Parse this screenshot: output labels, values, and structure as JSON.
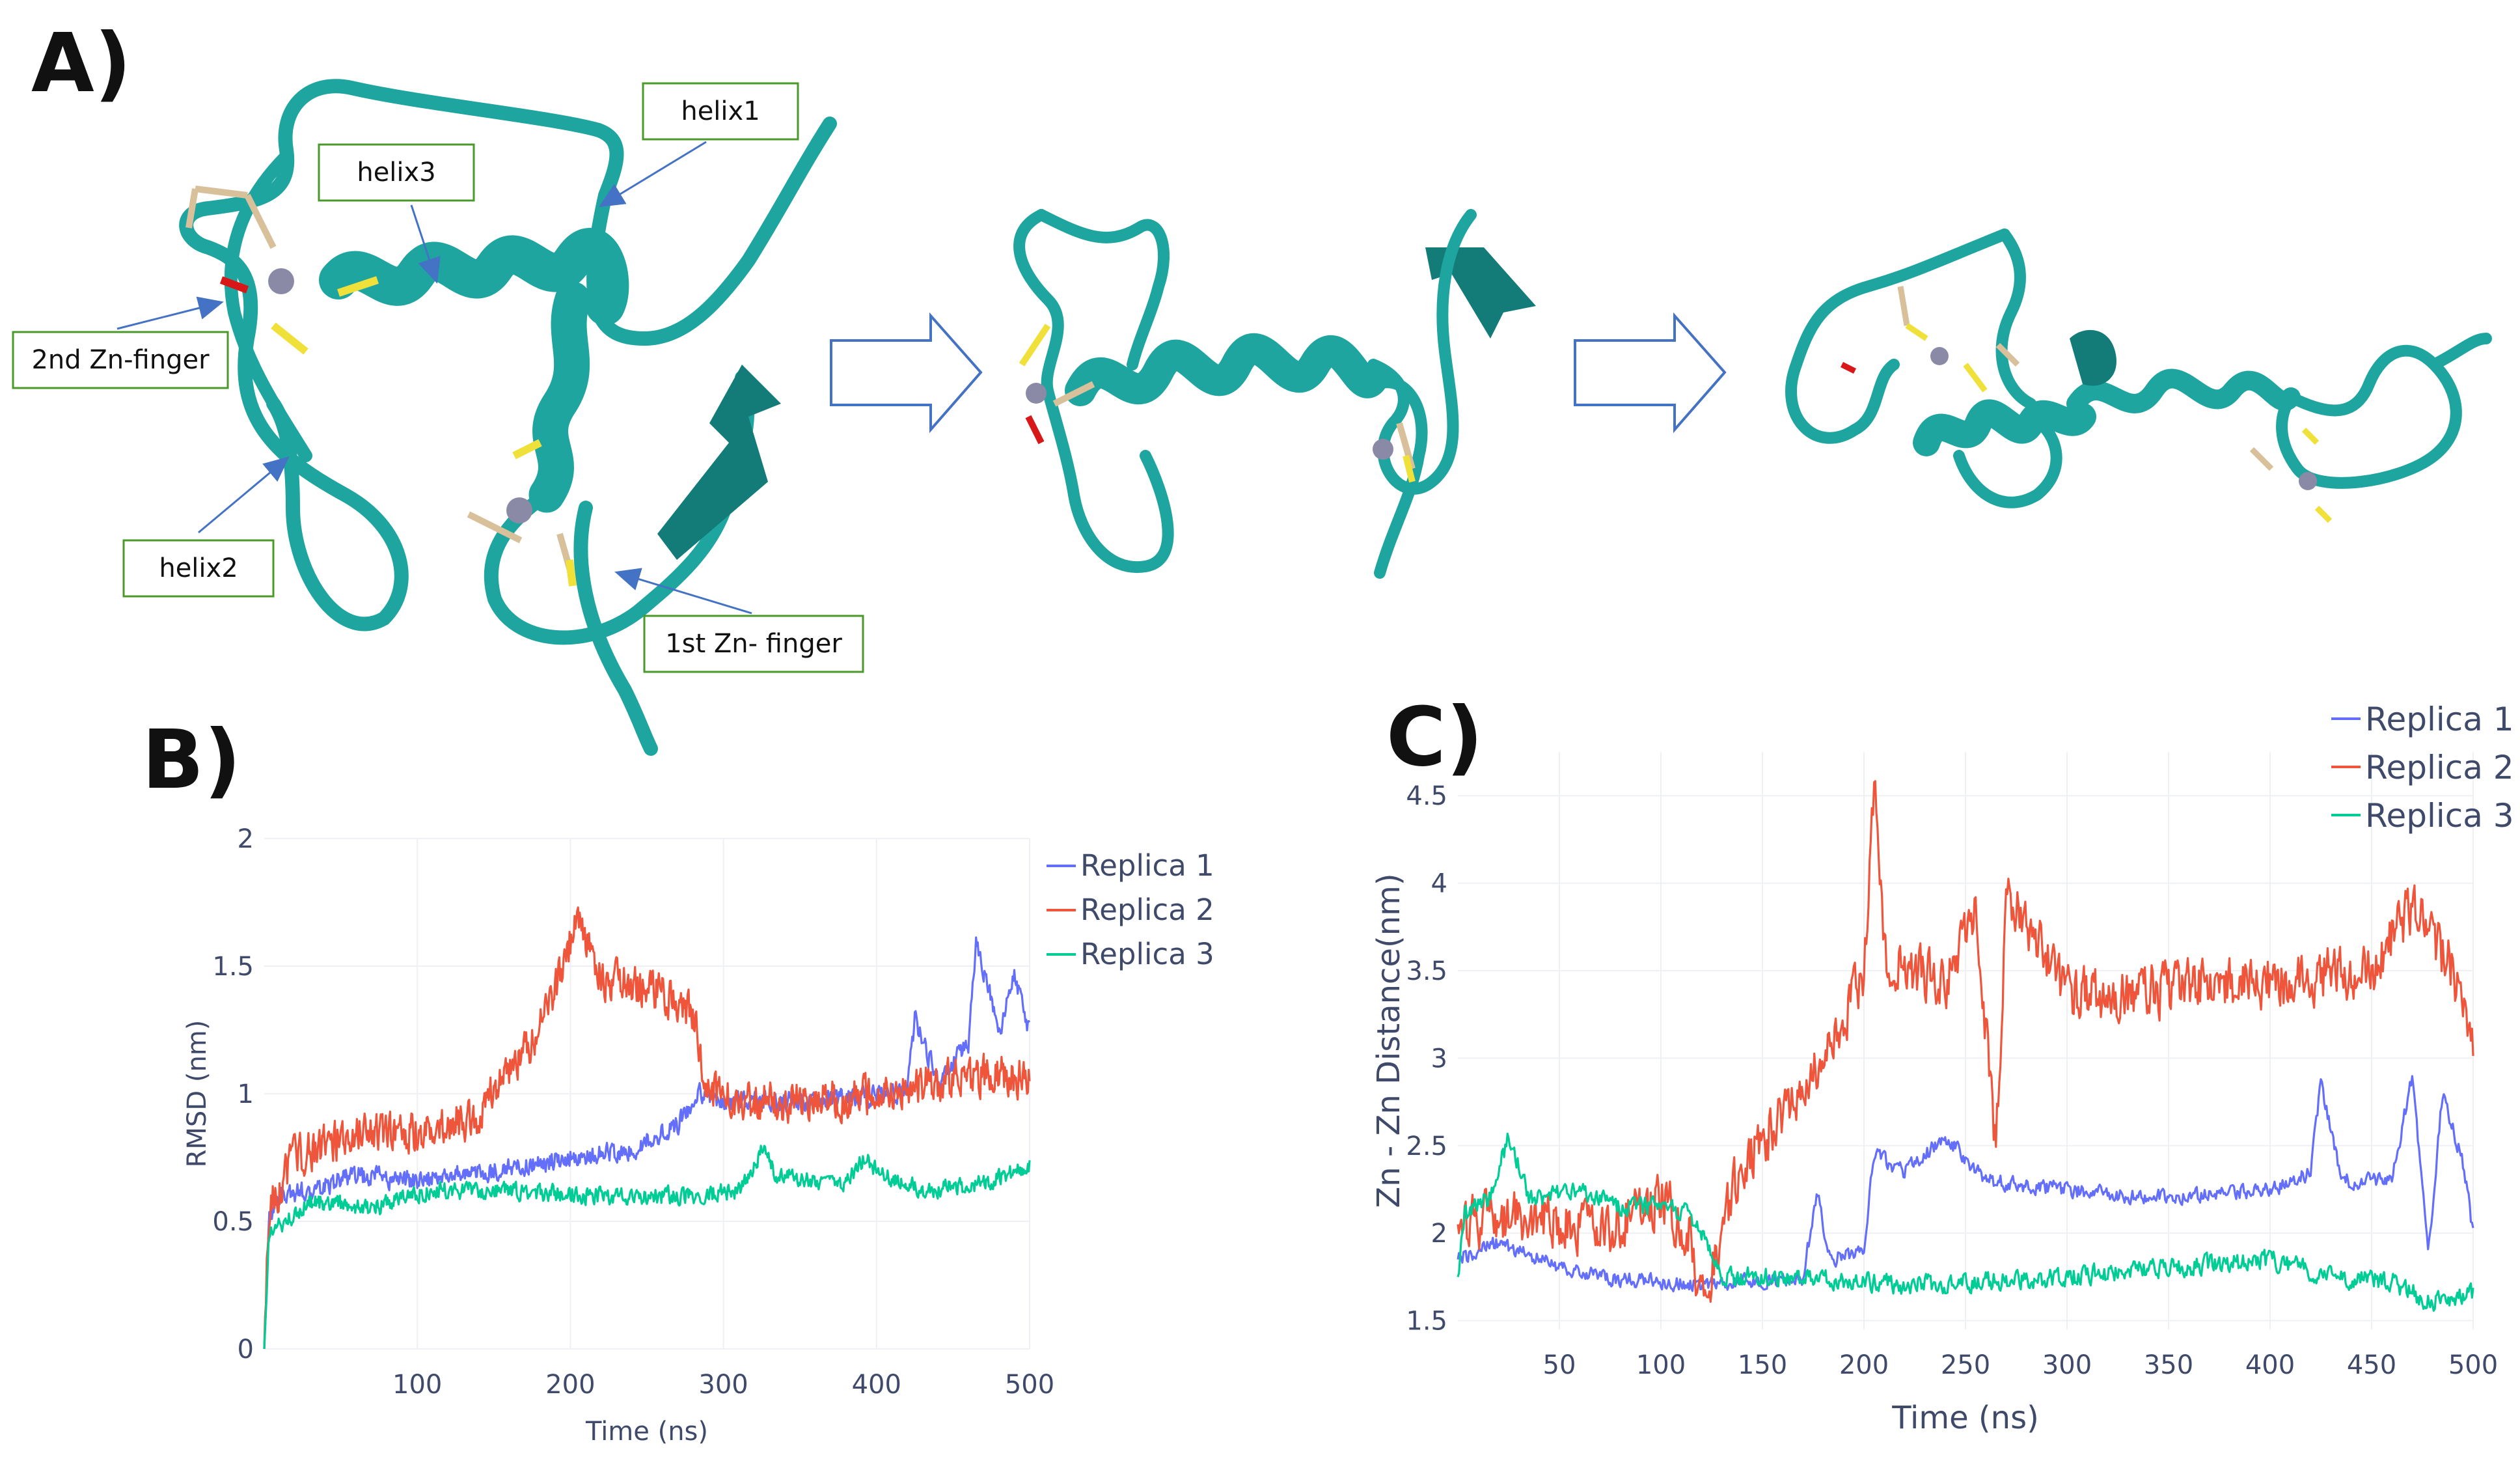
{
  "panels": {
    "a": {
      "letter": "A)",
      "labels": {
        "helix1": "helix1",
        "helix2": "helix2",
        "helix3": "helix3",
        "zn2": "2nd Zn-finger",
        "zn1": "1st Zn- finger"
      }
    },
    "b": {
      "letter": "B)"
    },
    "c": {
      "letter": "C)"
    }
  },
  "colors": {
    "ribbon": "#1fa5a0",
    "ribbon_dark": "#137c78",
    "zinc": "#8a8aa6",
    "sulfur": "#f0e03a",
    "carbon": "#d8c09a",
    "oxygen": "#d81818",
    "callout_border": "#4a9a2a",
    "arrow": "#4472c4",
    "replica1": "#636efa",
    "replica2": "#ef553b",
    "replica3": "#00cc96",
    "grid": "#eef0f5"
  },
  "chart_data": [
    {
      "type": "line",
      "title": "",
      "xlabel": "Time (ns)",
      "ylabel": "RMSD (nm)",
      "xlim": [
        0,
        500
      ],
      "ylim": [
        0,
        2
      ],
      "xticks": [
        100,
        200,
        300,
        400,
        500
      ],
      "yticks": [
        0,
        0.5,
        1,
        1.5,
        2
      ],
      "legend": "top-right",
      "grid": true,
      "series": [
        {
          "name": "Replica 1",
          "color": "#636efa",
          "noise": 0.035,
          "points": [
            [
              0,
              0
            ],
            [
              3,
              0.5
            ],
            [
              10,
              0.6
            ],
            [
              30,
              0.62
            ],
            [
              60,
              0.68
            ],
            [
              100,
              0.66
            ],
            [
              150,
              0.7
            ],
            [
              200,
              0.75
            ],
            [
              240,
              0.78
            ],
            [
              270,
              0.88
            ],
            [
              285,
              1.0
            ],
            [
              300,
              0.97
            ],
            [
              350,
              0.97
            ],
            [
              400,
              0.99
            ],
            [
              420,
              1.0
            ],
            [
              425,
              1.3
            ],
            [
              440,
              1.05
            ],
            [
              460,
              1.2
            ],
            [
              465,
              1.6
            ],
            [
              480,
              1.25
            ],
            [
              490,
              1.45
            ],
            [
              500,
              1.25
            ]
          ]
        },
        {
          "name": "Replica 2",
          "color": "#ef553b",
          "noise": 0.07,
          "points": [
            [
              0,
              0
            ],
            [
              3,
              0.55
            ],
            [
              20,
              0.75
            ],
            [
              60,
              0.85
            ],
            [
              100,
              0.85
            ],
            [
              140,
              0.92
            ],
            [
              160,
              1.1
            ],
            [
              180,
              1.25
            ],
            [
              195,
              1.5
            ],
            [
              205,
              1.7
            ],
            [
              220,
              1.45
            ],
            [
              260,
              1.4
            ],
            [
              280,
              1.3
            ],
            [
              290,
              1.0
            ],
            [
              320,
              0.97
            ],
            [
              360,
              0.97
            ],
            [
              400,
              1.0
            ],
            [
              440,
              1.05
            ],
            [
              480,
              1.08
            ],
            [
              500,
              1.05
            ]
          ]
        },
        {
          "name": "Replica 3",
          "color": "#00cc96",
          "noise": 0.03,
          "points": [
            [
              0,
              0
            ],
            [
              3,
              0.45
            ],
            [
              30,
              0.58
            ],
            [
              70,
              0.55
            ],
            [
              110,
              0.62
            ],
            [
              160,
              0.62
            ],
            [
              220,
              0.6
            ],
            [
              280,
              0.6
            ],
            [
              310,
              0.62
            ],
            [
              325,
              0.78
            ],
            [
              335,
              0.68
            ],
            [
              380,
              0.65
            ],
            [
              392,
              0.75
            ],
            [
              400,
              0.7
            ],
            [
              430,
              0.62
            ],
            [
              470,
              0.65
            ],
            [
              500,
              0.72
            ]
          ]
        }
      ]
    },
    {
      "type": "line",
      "title": "",
      "xlabel": "Time (ns)",
      "ylabel": "Zn - Zn Distance(nm)",
      "xlim": [
        0,
        500
      ],
      "ylim": [
        1.45,
        4.75
      ],
      "xticks": [
        50,
        100,
        150,
        200,
        250,
        300,
        350,
        400,
        450,
        500
      ],
      "yticks": [
        1.5,
        2,
        2.5,
        3,
        3.5,
        4,
        4.5
      ],
      "legend": "top-right",
      "grid": true,
      "series": [
        {
          "name": "Replica 1",
          "color": "#636efa",
          "noise": 0.04,
          "points": [
            [
              0,
              1.85
            ],
            [
              20,
              1.95
            ],
            [
              40,
              1.85
            ],
            [
              70,
              1.75
            ],
            [
              120,
              1.7
            ],
            [
              170,
              1.75
            ],
            [
              177,
              2.25
            ],
            [
              183,
              1.85
            ],
            [
              200,
              1.9
            ],
            [
              205,
              2.45
            ],
            [
              220,
              2.35
            ],
            [
              240,
              2.55
            ],
            [
              260,
              2.3
            ],
            [
              300,
              2.25
            ],
            [
              350,
              2.2
            ],
            [
              400,
              2.25
            ],
            [
              420,
              2.35
            ],
            [
              425,
              2.85
            ],
            [
              435,
              2.3
            ],
            [
              460,
              2.3
            ],
            [
              470,
              2.9
            ],
            [
              478,
              1.9
            ],
            [
              485,
              2.8
            ],
            [
              495,
              2.4
            ],
            [
              500,
              2.0
            ]
          ]
        },
        {
          "name": "Replica 2",
          "color": "#ef553b",
          "noise": 0.14,
          "points": [
            [
              0,
              2.05
            ],
            [
              30,
              2.1
            ],
            [
              70,
              2.0
            ],
            [
              100,
              2.2
            ],
            [
              115,
              2.0
            ],
            [
              120,
              1.6
            ],
            [
              140,
              2.4
            ],
            [
              170,
              2.8
            ],
            [
              190,
              3.2
            ],
            [
              200,
              3.5
            ],
            [
              205,
              4.6
            ],
            [
              210,
              3.6
            ],
            [
              240,
              3.4
            ],
            [
              255,
              3.8
            ],
            [
              265,
              2.5
            ],
            [
              270,
              3.9
            ],
            [
              290,
              3.6
            ],
            [
              300,
              3.35
            ],
            [
              350,
              3.4
            ],
            [
              400,
              3.45
            ],
            [
              450,
              3.5
            ],
            [
              470,
              3.85
            ],
            [
              490,
              3.5
            ],
            [
              500,
              3.0
            ]
          ]
        },
        {
          "name": "Replica 3",
          "color": "#00cc96",
          "noise": 0.05,
          "points": [
            [
              0,
              1.75
            ],
            [
              3,
              2.1
            ],
            [
              15,
              2.2
            ],
            [
              25,
              2.55
            ],
            [
              35,
              2.2
            ],
            [
              60,
              2.25
            ],
            [
              80,
              2.15
            ],
            [
              100,
              2.15
            ],
            [
              115,
              2.1
            ],
            [
              130,
              1.75
            ],
            [
              170,
              1.75
            ],
            [
              220,
              1.7
            ],
            [
              300,
              1.75
            ],
            [
              350,
              1.8
            ],
            [
              400,
              1.85
            ],
            [
              430,
              1.75
            ],
            [
              460,
              1.72
            ],
            [
              480,
              1.6
            ],
            [
              500,
              1.65
            ]
          ]
        }
      ]
    }
  ]
}
